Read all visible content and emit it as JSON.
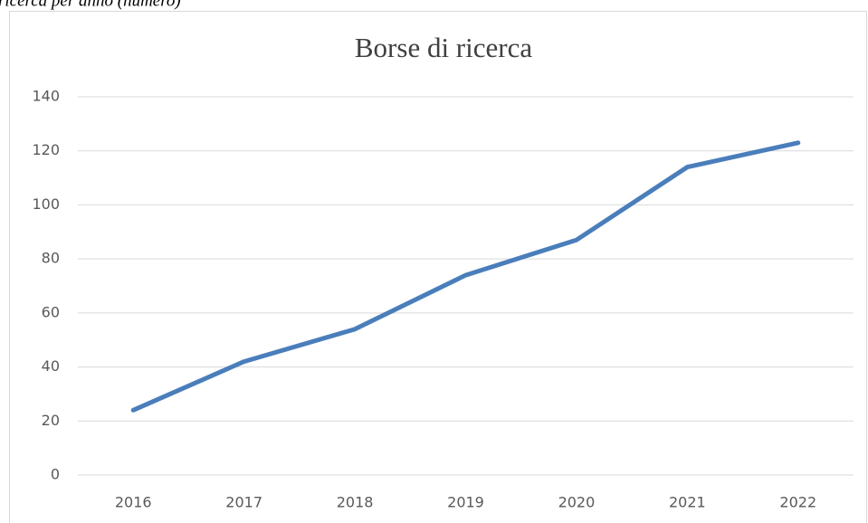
{
  "caption": "ricerca per anno (numero)",
  "chart_data": {
    "type": "line",
    "title": "Borse di ricerca",
    "categories": [
      "2016",
      "2017",
      "2018",
      "2019",
      "2020",
      "2021",
      "2022"
    ],
    "values": [
      24,
      42,
      54,
      74,
      87,
      114,
      123
    ],
    "color": "#4a7ebb",
    "ylim": [
      0,
      140
    ],
    "yticks": [
      0,
      20,
      40,
      60,
      80,
      100,
      120,
      140
    ],
    "grid": true
  }
}
